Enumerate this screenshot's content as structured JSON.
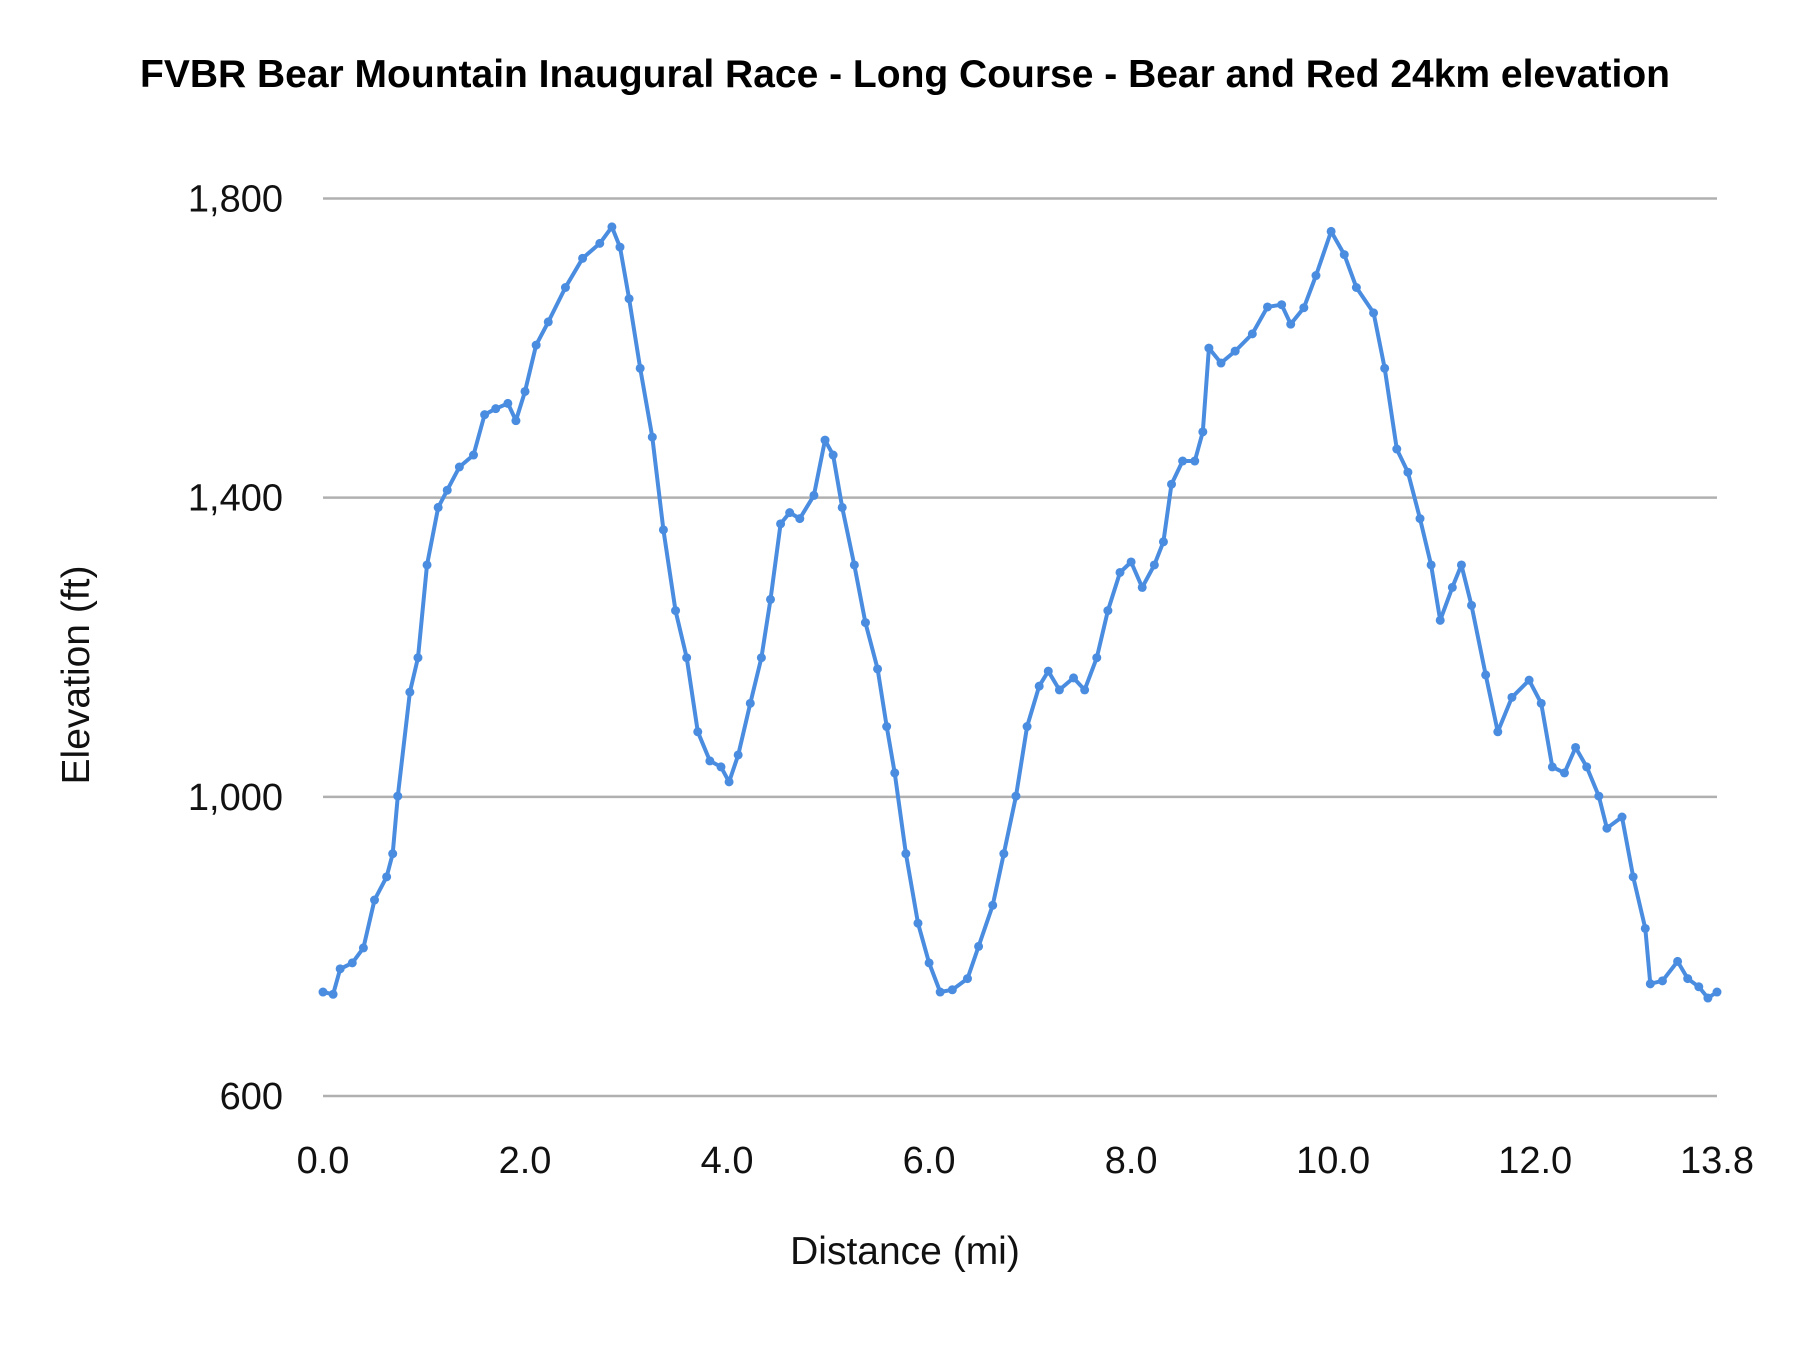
{
  "chart_data": {
    "type": "line",
    "title": "FVBR Bear Mountain Inaugural Race - Long Course - Bear and Red 24km elevation",
    "xlabel": "Distance (mi)",
    "ylabel": "Elevation (ft)",
    "xlim": [
      0,
      13.8
    ],
    "ylim": [
      600,
      1800
    ],
    "x_ticks": [
      "0.0",
      "2.0",
      "4.0",
      "6.0",
      "8.0",
      "10.0",
      "12.0",
      "13.8"
    ],
    "x_tick_values": [
      0,
      2,
      4,
      6,
      8,
      10,
      12,
      13.8
    ],
    "y_ticks": [
      "600",
      "1,000",
      "1,400",
      "1,800"
    ],
    "y_tick_values": [
      600,
      1000,
      1400,
      1800
    ],
    "grid": "horizontal",
    "markers": true,
    "color": "#4a8de0",
    "series": [
      {
        "x": [
          0,
          0.1,
          0.17,
          0.29,
          0.4,
          0.51,
          0.63,
          0.69,
          0.74,
          0.86,
          0.94,
          1.03,
          1.14,
          1.23,
          1.35,
          1.49,
          1.6,
          1.71,
          1.83,
          1.91,
          2.0,
          2.11,
          2.23,
          2.4,
          2.57,
          2.74,
          2.86,
          2.94,
          3.03,
          3.14,
          3.26,
          3.37,
          3.49,
          3.6,
          3.71,
          3.83,
          3.94,
          4.02,
          4.11,
          4.23,
          4.34,
          4.43,
          4.53,
          4.62,
          4.72,
          4.86,
          4.97,
          5.05,
          5.14,
          5.26,
          5.37,
          5.49,
          5.58,
          5.66,
          5.77,
          5.89,
          6.0,
          6.11,
          6.23,
          6.38,
          6.49,
          6.63,
          6.74,
          6.86,
          6.97,
          7.09,
          7.18,
          7.29,
          7.43,
          7.54,
          7.66,
          7.77,
          7.89,
          8.0,
          8.11,
          8.23,
          8.32,
          8.4,
          8.51,
          8.63,
          8.71,
          8.77,
          8.89,
          9.03,
          9.2,
          9.35,
          9.49,
          9.58,
          9.71,
          9.83,
          9.98,
          10.11,
          10.23,
          10.4,
          10.51,
          10.63,
          10.74,
          10.86,
          10.97,
          11.06,
          11.18,
          11.27,
          11.37,
          11.51,
          11.63,
          11.77,
          11.94,
          12.06,
          12.17,
          12.29,
          12.4,
          12.51,
          12.63,
          12.71,
          12.86,
          12.97,
          13.09,
          13.14,
          13.26,
          13.41,
          13.51,
          13.62,
          13.71,
          13.8
        ],
        "y": [
          739,
          736,
          770,
          778,
          798,
          862,
          893,
          924,
          1001,
          1140,
          1186,
          1310,
          1387,
          1410,
          1441,
          1457,
          1511,
          1519,
          1526,
          1503,
          1542,
          1604,
          1635,
          1681,
          1720,
          1740,
          1762,
          1735,
          1666,
          1573,
          1481,
          1357,
          1249,
          1186,
          1087,
          1048,
          1040,
          1020,
          1056,
          1125,
          1186,
          1264,
          1365,
          1380,
          1372,
          1403,
          1477,
          1457,
          1387,
          1310,
          1233,
          1171,
          1094,
          1032,
          924,
          831,
          778,
          739,
          742,
          757,
          800,
          855,
          924,
          1001,
          1094,
          1148,
          1168,
          1143,
          1159,
          1143,
          1186,
          1249,
          1300,
          1314,
          1280,
          1310,
          1341,
          1418,
          1449,
          1449,
          1488,
          1600,
          1580,
          1596,
          1619,
          1655,
          1658,
          1632,
          1654,
          1697,
          1756,
          1725,
          1681,
          1647,
          1573,
          1465,
          1434,
          1372,
          1310,
          1236,
          1280,
          1310,
          1256,
          1163,
          1087,
          1133,
          1156,
          1125,
          1040,
          1032,
          1066,
          1040,
          1001,
          958,
          973,
          893,
          824,
          750,
          754,
          780,
          757,
          746,
          731,
          739
        ]
      }
    ]
  }
}
